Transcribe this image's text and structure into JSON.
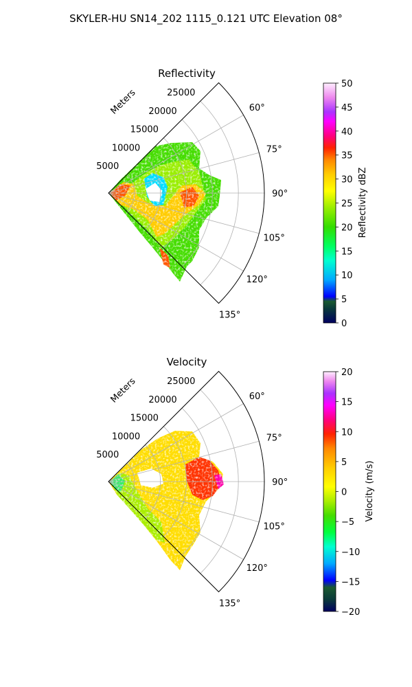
{
  "figure_title": "SKYLER-HU  SN14_202  1115_0.121 UTC Elevation 08°",
  "chart_data": [
    {
      "type": "polar-sector",
      "title": "Reflectivity",
      "radial_label": "Meters",
      "radial_ticks": [
        5000,
        10000,
        15000,
        20000,
        25000
      ],
      "radial_max": 30000,
      "azimuth_range": [
        45,
        135
      ],
      "azimuth_ticks": [
        60,
        75,
        90,
        105,
        120,
        135
      ],
      "azimuth_tick_labels": [
        "60°",
        "75°",
        "90°",
        "105°",
        "120°",
        "135°"
      ],
      "radial_tick_labels": [
        "5000",
        "10000",
        "15000",
        "20000",
        "25000"
      ],
      "grid": true,
      "colorbar": {
        "label": "Reflectivity dBZ",
        "range": [
          0,
          50
        ],
        "ticks": [
          0,
          5,
          10,
          15,
          20,
          25,
          30,
          35,
          40,
          45,
          50
        ],
        "tick_labels": [
          "0",
          "5",
          "10",
          "15",
          "20",
          "25",
          "30",
          "35",
          "40",
          "45",
          "50"
        ]
      }
    },
    {
      "type": "polar-sector",
      "title": "Velocity",
      "radial_label": "Meters",
      "radial_ticks": [
        5000,
        10000,
        15000,
        20000,
        25000
      ],
      "radial_max": 30000,
      "azimuth_range": [
        45,
        135
      ],
      "azimuth_ticks": [
        60,
        75,
        90,
        105,
        120,
        135
      ],
      "azimuth_tick_labels": [
        "60°",
        "75°",
        "90°",
        "105°",
        "120°",
        "135°"
      ],
      "radial_tick_labels": [
        "5000",
        "10000",
        "15000",
        "20000",
        "25000"
      ],
      "grid": true,
      "colorbar": {
        "label": "Velocity (m/s)",
        "range": [
          -20,
          20
        ],
        "ticks": [
          -20,
          -15,
          -10,
          -5,
          0,
          5,
          10,
          15,
          20
        ],
        "tick_labels": [
          "−20",
          "−15",
          "−10",
          "−5",
          "0",
          "5",
          "10",
          "15",
          "20"
        ]
      }
    }
  ]
}
